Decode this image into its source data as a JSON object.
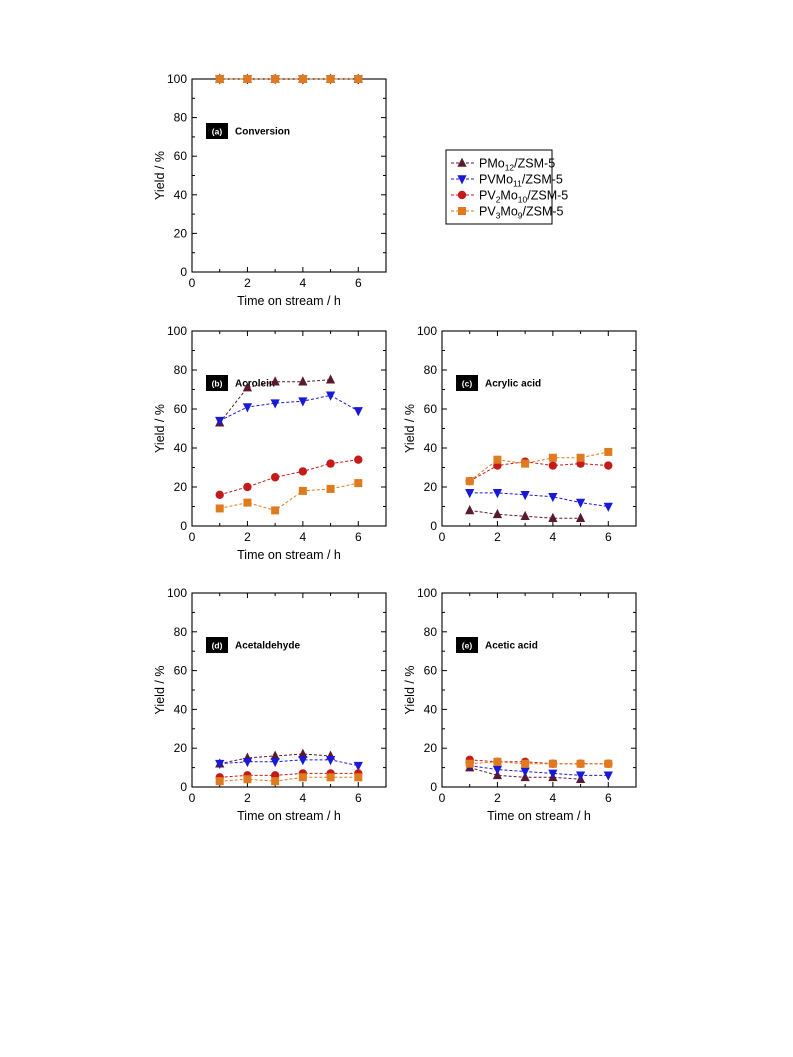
{
  "colors": {
    "PMo12": "#5a1a2e",
    "PVMo11": "#1a1ad6",
    "PV2Mo10": "#c41a1a",
    "PV3Mo9": "#e07a1e",
    "badge": "#000000",
    "axis": "#000000"
  },
  "legend": {
    "items": [
      {
        "key": "PMo12",
        "marker": "triangle-up",
        "prefix": "PMo",
        "sub": "12",
        "suffix": "/ZSM-5"
      },
      {
        "key": "PVMo11",
        "marker": "triangle-down",
        "prefix": "PVMo",
        "sub": "11",
        "suffix": "/ZSM-5"
      },
      {
        "key": "PV2Mo10",
        "marker": "circle",
        "prefix": "PV",
        "sub": "2",
        "mid": "Mo",
        "sub2": "10",
        "suffix": "/ZSM-5"
      },
      {
        "key": "PV3Mo9",
        "marker": "square",
        "prefix": "PV",
        "sub": "3",
        "mid": "Mo",
        "sub2": "9",
        "suffix": "/ZSM-5"
      }
    ]
  },
  "chart_data": [
    {
      "id": "a",
      "type": "line",
      "badge": "(a)",
      "title": "Conversion",
      "xlabel": "Time on stream / h",
      "ylabel": "Yield / %",
      "xlim": [
        0,
        7
      ],
      "ylim": [
        0,
        100
      ],
      "xticks": [
        0,
        2,
        4,
        6
      ],
      "yticks": [
        0,
        20,
        40,
        60,
        80,
        100
      ],
      "series": [
        {
          "key": "PMo12",
          "x": [
            1,
            2,
            3,
            4,
            5,
            6
          ],
          "y": [
            100,
            100,
            100,
            100,
            100,
            100
          ]
        },
        {
          "key": "PVMo11",
          "x": [
            1,
            2,
            3,
            4,
            5,
            6
          ],
          "y": [
            100,
            100,
            100,
            100,
            100,
            100
          ]
        },
        {
          "key": "PV2Mo10",
          "x": [
            1,
            2,
            3,
            4,
            5,
            6
          ],
          "y": [
            100,
            100,
            100,
            100,
            100,
            100
          ]
        },
        {
          "key": "PV3Mo9",
          "x": [
            1,
            2,
            3,
            4,
            5,
            6
          ],
          "y": [
            100,
            100,
            100,
            100,
            100,
            100
          ]
        }
      ]
    },
    {
      "id": "b",
      "type": "line",
      "badge": "(b)",
      "title": "Acrolein",
      "xlabel": "Time on stream / h",
      "ylabel": "Yield / %",
      "xlim": [
        0,
        7
      ],
      "ylim": [
        0,
        100
      ],
      "xticks": [
        0,
        2,
        4,
        6
      ],
      "yticks": [
        0,
        20,
        40,
        60,
        80,
        100
      ],
      "series": [
        {
          "key": "PMo12",
          "x": [
            1,
            2,
            3,
            4,
            5
          ],
          "y": [
            53,
            71,
            74,
            74,
            75
          ]
        },
        {
          "key": "PVMo11",
          "x": [
            1,
            2,
            3,
            4,
            5,
            6
          ],
          "y": [
            54,
            61,
            63,
            64,
            67,
            59
          ]
        },
        {
          "key": "PV2Mo10",
          "x": [
            1,
            2,
            3,
            4,
            5,
            6
          ],
          "y": [
            16,
            20,
            25,
            28,
            32,
            34
          ]
        },
        {
          "key": "PV3Mo9",
          "x": [
            1,
            2,
            3,
            4,
            5,
            6
          ],
          "y": [
            9,
            12,
            8,
            18,
            19,
            22
          ]
        }
      ]
    },
    {
      "id": "c",
      "type": "line",
      "badge": "(c)",
      "title": "Acrylic acid",
      "xlabel": "",
      "ylabel": "Yield / %",
      "xlim": [
        0,
        7
      ],
      "ylim": [
        0,
        100
      ],
      "xticks": [
        0,
        2,
        4,
        6
      ],
      "yticks": [
        0,
        20,
        40,
        60,
        80,
        100
      ],
      "series": [
        {
          "key": "PMo12",
          "x": [
            1,
            2,
            3,
            4,
            5
          ],
          "y": [
            8,
            6,
            5,
            4,
            4
          ]
        },
        {
          "key": "PVMo11",
          "x": [
            1,
            2,
            3,
            4,
            5,
            6
          ],
          "y": [
            17,
            17,
            16,
            15,
            12,
            10
          ]
        },
        {
          "key": "PV2Mo10",
          "x": [
            1,
            2,
            3,
            4,
            5,
            6
          ],
          "y": [
            23,
            31,
            33,
            31,
            32,
            31
          ]
        },
        {
          "key": "PV3Mo9",
          "x": [
            1,
            2,
            3,
            4,
            5,
            6
          ],
          "y": [
            23,
            34,
            32,
            35,
            35,
            38
          ]
        }
      ]
    },
    {
      "id": "d",
      "type": "line",
      "badge": "(d)",
      "title": "Acetaldehyde",
      "xlabel": "Time on stream / h",
      "ylabel": "Yield / %",
      "xlim": [
        0,
        7
      ],
      "ylim": [
        0,
        100
      ],
      "xticks": [
        0,
        2,
        4,
        6
      ],
      "yticks": [
        0,
        20,
        40,
        60,
        80,
        100
      ],
      "series": [
        {
          "key": "PMo12",
          "x": [
            1,
            2,
            3,
            4,
            5
          ],
          "y": [
            12,
            15,
            16,
            17,
            16
          ]
        },
        {
          "key": "PVMo11",
          "x": [
            1,
            2,
            3,
            4,
            5,
            6
          ],
          "y": [
            12,
            13,
            13,
            14,
            14,
            11
          ]
        },
        {
          "key": "PV2Mo10",
          "x": [
            1,
            2,
            3,
            4,
            5,
            6
          ],
          "y": [
            5,
            6,
            6,
            7,
            7,
            7
          ]
        },
        {
          "key": "PV3Mo9",
          "x": [
            1,
            2,
            3,
            4,
            5,
            6
          ],
          "y": [
            3,
            4,
            3,
            5,
            5,
            5
          ]
        }
      ]
    },
    {
      "id": "e",
      "type": "line",
      "badge": "(e)",
      "title": "Acetic acid",
      "xlabel": "Time on stream / h",
      "ylabel": "Yield / %",
      "xlim": [
        0,
        7
      ],
      "ylim": [
        0,
        100
      ],
      "xticks": [
        0,
        2,
        4,
        6
      ],
      "yticks": [
        0,
        20,
        40,
        60,
        80,
        100
      ],
      "series": [
        {
          "key": "PMo12",
          "x": [
            1,
            2,
            3,
            4,
            5
          ],
          "y": [
            10,
            6,
            5,
            5,
            4
          ]
        },
        {
          "key": "PVMo11",
          "x": [
            1,
            2,
            3,
            4,
            5,
            6
          ],
          "y": [
            11,
            9,
            8,
            7,
            6,
            6
          ]
        },
        {
          "key": "PV2Mo10",
          "x": [
            1,
            2,
            3,
            4,
            5,
            6
          ],
          "y": [
            14,
            13,
            13,
            12,
            12,
            12
          ]
        },
        {
          "key": "PV3Mo9",
          "x": [
            1,
            2,
            3,
            4,
            5,
            6
          ],
          "y": [
            12,
            13,
            12,
            12,
            12,
            12
          ]
        }
      ]
    }
  ]
}
